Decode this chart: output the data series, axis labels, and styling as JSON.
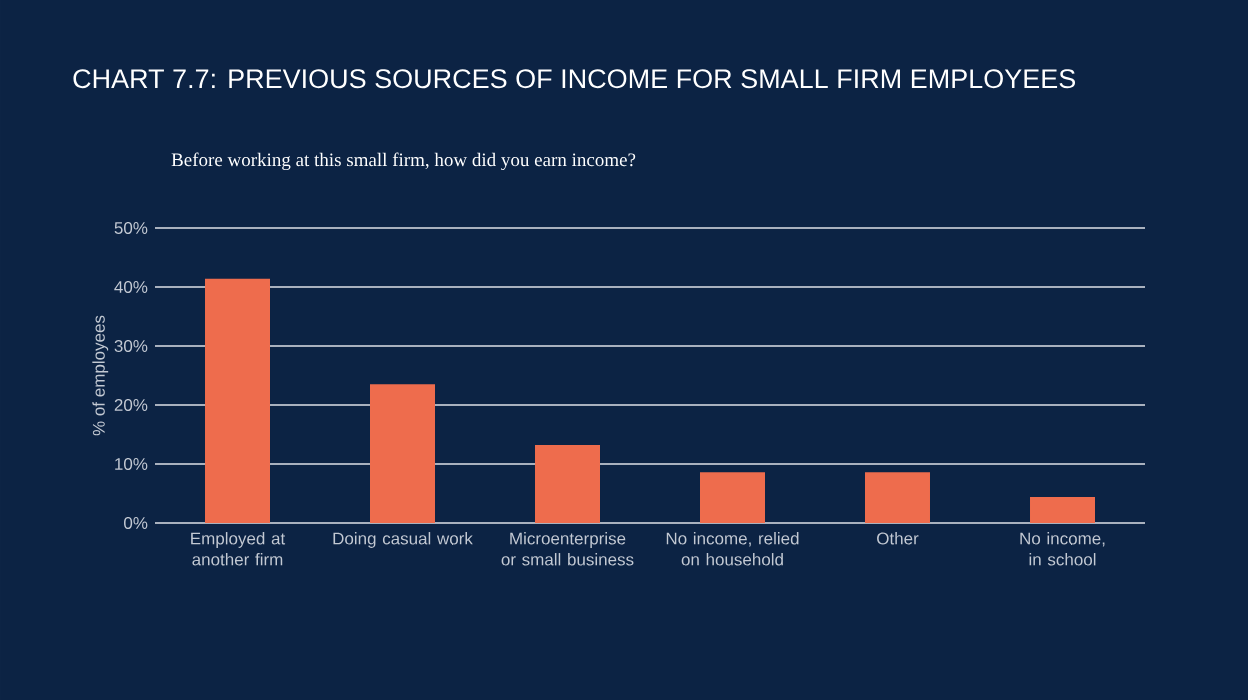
{
  "chart_data": {
    "type": "bar",
    "title": "CHART 7.7: PREVIOUS SOURCES OF INCOME FOR SMALL FIRM EMPLOYEES",
    "subtitle": "Before working at this small firm, how did you earn income?",
    "ylabel": "% of employees",
    "categories": [
      "Employed at another firm",
      "Doing casual work",
      "Microenterprise or small business",
      "No income, relied on household",
      "Other",
      "No income, in school"
    ],
    "values": [
      41.4,
      23.5,
      13.2,
      8.6,
      8.6,
      4.4
    ],
    "color": "#ee6c4d",
    "ylim": [
      0,
      50
    ],
    "yticks": [
      {
        "value": 0,
        "label": "0%"
      },
      {
        "value": 10,
        "label": "10%"
      },
      {
        "value": 20,
        "label": "20%"
      },
      {
        "value": 30,
        "label": "30%"
      },
      {
        "value": 40,
        "label": "40%"
      },
      {
        "value": 50,
        "label": "50%"
      }
    ],
    "grid": "y"
  }
}
